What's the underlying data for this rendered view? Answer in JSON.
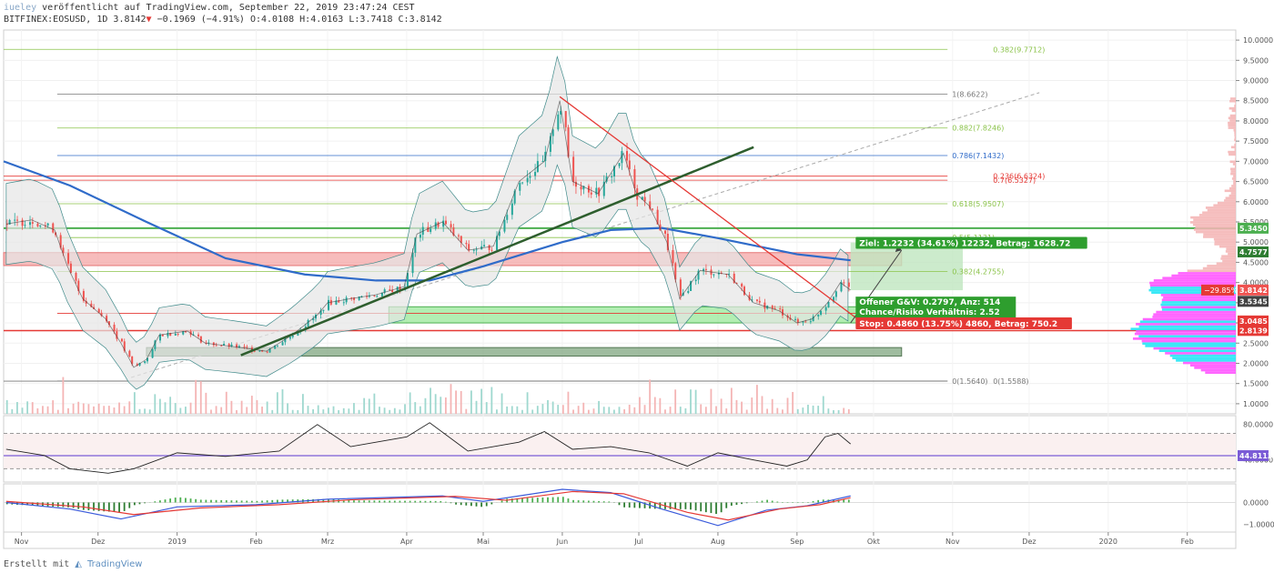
{
  "header": {
    "user": "iueley",
    "published": "veröffentlicht auf TradingView.com, September 22, 2019 23:47:24 CEST",
    "symbol": "BITFINEX:EOSUSD, 1D",
    "last": "3.8142",
    "change": "−0.1969 (−4.91%)",
    "ohlc": "O:4.0108 H:4.0163 L:3.7418 C:3.8142"
  },
  "footer": {
    "created_with": "Erstellt mit",
    "brand": "TradingView"
  },
  "colors": {
    "up": "#26a69a",
    "down": "#ef5350",
    "ma200": "#2f6bc9",
    "trend": "#2e5e2e",
    "fib": "#8bc34a",
    "fib_blue": "#2f6bc9",
    "fib_red": "#e53935",
    "bb": "#3f8a8a",
    "pink": "#ff55ff",
    "cyan": "#25e5f5"
  },
  "chart_data": [
    {
      "type": "line",
      "panel": "price",
      "title": "BITFINEX:EOSUSD, 1D",
      "x": [
        "Nov",
        "Dez",
        "2019",
        "Feb",
        "Mrz",
        "Apr",
        "Mai",
        "Jun",
        "Jul",
        "Aug",
        "Sep",
        "Okt",
        "Nov",
        "Dez",
        "2020",
        "Feb"
      ],
      "xlim": [
        "2018-10-25",
        "2020-02-20"
      ],
      "ylim": [
        0.75,
        10.25
      ],
      "yticks": [
        "10.0000",
        "9.5000",
        "9.0000",
        "8.5000",
        "8.0000",
        "7.5000",
        "7.0000",
        "6.5000",
        "6.0000",
        "5.5000",
        "5.0000",
        "4.5000",
        "4.0000",
        "3.5000",
        "3.0000",
        "2.5000",
        "2.0000",
        "1.5000",
        "1.0000"
      ],
      "series": [
        {
          "points": [
            [
              "2018-10-26",
              5.45
            ],
            [
              "2018-11-05",
              5.55
            ],
            [
              "2018-11-14",
              5.3
            ],
            [
              "2018-11-19",
              4.4
            ],
            [
              "2018-11-25",
              3.6
            ],
            [
              "2018-12-04",
              3.1
            ],
            [
              "2018-12-10",
              2.5
            ],
            [
              "2018-12-15",
              1.9
            ],
            [
              "2018-12-20",
              2.1
            ],
            [
              "2018-12-25",
              2.7
            ],
            [
              "2019-01-05",
              2.8
            ],
            [
              "2019-01-12",
              2.5
            ],
            [
              "2019-01-25",
              2.4
            ],
            [
              "2019-02-05",
              2.3
            ],
            [
              "2019-02-15",
              2.7
            ],
            [
              "2019-02-25",
              3.2
            ],
            [
              "2019-03-01",
              3.5
            ],
            [
              "2019-03-10",
              3.6
            ],
            [
              "2019-03-20",
              3.7
            ],
            [
              "2019-03-31",
              3.9
            ],
            [
              "2019-04-05",
              5.2
            ],
            [
              "2019-04-15",
              5.5
            ],
            [
              "2019-04-25",
              4.8
            ],
            [
              "2019-05-05",
              4.9
            ],
            [
              "2019-05-15",
              6.5
            ],
            [
              "2019-05-25",
              7.0
            ],
            [
              "2019-05-31",
              8.5
            ],
            [
              "2019-06-05",
              6.5
            ],
            [
              "2019-06-15",
              6.2
            ],
            [
              "2019-06-25",
              7.2
            ],
            [
              "2019-06-30",
              6.2
            ],
            [
              "2019-07-05",
              5.9
            ],
            [
              "2019-07-12",
              5.0
            ],
            [
              "2019-07-17",
              3.6
            ],
            [
              "2019-07-25",
              4.3
            ],
            [
              "2019-08-05",
              4.2
            ],
            [
              "2019-08-15",
              3.5
            ],
            [
              "2019-08-25",
              3.3
            ],
            [
              "2019-09-01",
              3.0
            ],
            [
              "2019-09-07",
              3.1
            ],
            [
              "2019-09-13",
              3.5
            ],
            [
              "2019-09-18",
              4.0
            ],
            [
              "2019-09-22",
              3.8142
            ]
          ]
        },
        {
          "name": "MA",
          "points": [
            [
              "2018-10-25",
              7.0
            ],
            [
              "2018-11-20",
              6.4
            ],
            [
              "2018-12-20",
              5.5
            ],
            [
              "2019-01-20",
              4.6
            ],
            [
              "2019-02-20",
              4.2
            ],
            [
              "2019-03-20",
              4.05
            ],
            [
              "2019-04-10",
              4.05
            ],
            [
              "2019-05-01",
              4.4
            ],
            [
              "2019-06-01",
              5.0
            ],
            [
              "2019-06-20",
              5.3
            ],
            [
              "2019-07-10",
              5.35
            ],
            [
              "2019-08-01",
              5.1
            ],
            [
              "2019-09-01",
              4.7
            ],
            [
              "2019-09-22",
              4.55
            ]
          ]
        }
      ],
      "annotations": {
        "fib_extension": [
          "1(8.6622)",
          "0.882(7.8246)",
          "0.786(7.1432)",
          "0.618(5.9507)",
          "0.5(5.1131)",
          "0.382(4.2755)",
          "0.236(3.2392)",
          "0(1.5640)"
        ],
        "fib_retracement": [
          "0.382(9.7712)",
          "0.236(6.6324)",
          "0.7(6.5327)",
          "0(1.5588)"
        ],
        "target_box": "Ziel: 1.2232 (34.61%) 12232, Betrag: 1628.72",
        "position_box": [
          "Offener G&V: 0.2797, Anz: 514",
          "Chance/Risiko Verhältnis: 2.52"
        ],
        "stop_box": "Stop: 0.4860 (13.75%) 4860, Betrag: 750.2",
        "price_tags": [
          {
            "text": "5.3450",
            "color": "#4caf50"
          },
          {
            "text": "4.7577",
            "color": "#2e7d32"
          },
          {
            "text": "−29.85%",
            "color": "#e53935"
          },
          {
            "text": "3.8142",
            "color": "#ef5350"
          },
          {
            "text": "3.5345",
            "color": "#424242"
          },
          {
            "text": "3.0485",
            "color": "#e53935"
          },
          {
            "text": "2.8139",
            "color": "#e53935"
          }
        ]
      },
      "grid": true
    },
    {
      "type": "line",
      "panel": "rsi",
      "yticks": [
        "80.0000",
        "40.0000"
      ],
      "ylim": [
        15,
        90
      ],
      "series": [
        {
          "points": [
            [
              "2018-10-26",
              52
            ],
            [
              "2018-11-10",
              45
            ],
            [
              "2018-11-20",
              30
            ],
            [
              "2018-12-05",
              25
            ],
            [
              "2018-12-15",
              30
            ],
            [
              "2019-01-01",
              48
            ],
            [
              "2019-01-20",
              44
            ],
            [
              "2019-02-10",
              50
            ],
            [
              "2019-02-25",
              80
            ],
            [
              "2019-03-10",
              55
            ],
            [
              "2019-04-01",
              66
            ],
            [
              "2019-04-10",
              82
            ],
            [
              "2019-04-25",
              50
            ],
            [
              "2019-05-15",
              60
            ],
            [
              "2019-05-25",
              72
            ],
            [
              "2019-06-05",
              52
            ],
            [
              "2019-06-20",
              55
            ],
            [
              "2019-07-05",
              48
            ],
            [
              "2019-07-20",
              33
            ],
            [
              "2019-08-01",
              48
            ],
            [
              "2019-08-15",
              40
            ],
            [
              "2019-08-28",
              33
            ],
            [
              "2019-09-05",
              40
            ],
            [
              "2019-09-12",
              66
            ],
            [
              "2019-09-17",
              70
            ],
            [
              "2019-09-22",
              58
            ]
          ]
        }
      ],
      "last_value": "44.8113"
    },
    {
      "type": "line",
      "panel": "macd",
      "yticks": [
        "0.0000",
        "−1.0000"
      ],
      "ylim": [
        -1.35,
        0.85
      ],
      "series": [
        {
          "name": "MACD",
          "points": [
            [
              "2018-10-26",
              0.0
            ],
            [
              "2018-11-20",
              -0.3
            ],
            [
              "2018-12-10",
              -0.75
            ],
            [
              "2019-01-01",
              -0.2
            ],
            [
              "2019-02-01",
              -0.1
            ],
            [
              "2019-03-01",
              0.15
            ],
            [
              "2019-04-15",
              0.3
            ],
            [
              "2019-05-01",
              0.05
            ],
            [
              "2019-06-01",
              0.6
            ],
            [
              "2019-06-20",
              0.45
            ],
            [
              "2019-07-10",
              -0.3
            ],
            [
              "2019-08-01",
              -1.05
            ],
            [
              "2019-08-20",
              -0.35
            ],
            [
              "2019-09-05",
              -0.15
            ],
            [
              "2019-09-22",
              0.3
            ]
          ]
        },
        {
          "name": "Signal",
          "points": [
            [
              "2018-10-26",
              0.05
            ],
            [
              "2018-11-25",
              -0.2
            ],
            [
              "2018-12-15",
              -0.55
            ],
            [
              "2019-01-10",
              -0.25
            ],
            [
              "2019-02-10",
              -0.1
            ],
            [
              "2019-03-10",
              0.12
            ],
            [
              "2019-04-20",
              0.28
            ],
            [
              "2019-05-10",
              0.1
            ],
            [
              "2019-06-05",
              0.5
            ],
            [
              "2019-06-25",
              0.4
            ],
            [
              "2019-07-20",
              -0.45
            ],
            [
              "2019-08-05",
              -0.8
            ],
            [
              "2019-08-25",
              -0.3
            ],
            [
              "2019-09-10",
              -0.1
            ],
            [
              "2019-09-22",
              0.22
            ]
          ]
        }
      ]
    }
  ]
}
